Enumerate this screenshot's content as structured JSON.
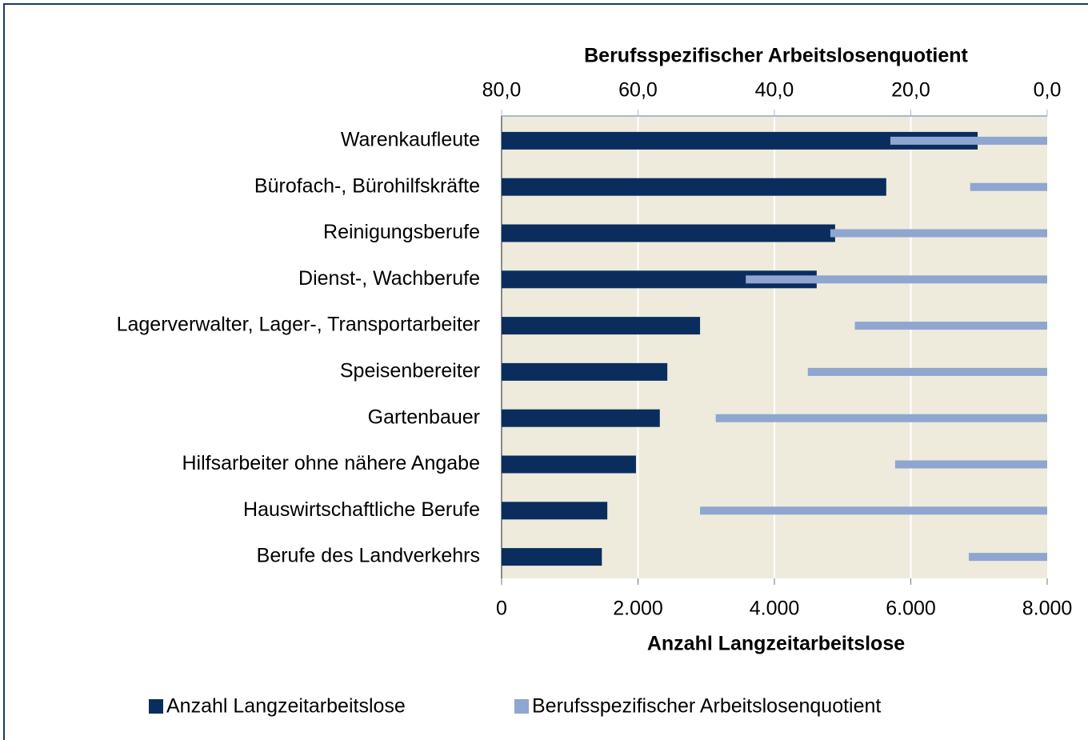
{
  "chart_data": {
    "type": "bar",
    "orientation": "horizontal",
    "categories": [
      "Warenkaufleute",
      "Bürofach-, Bürohilfskräfte",
      "Reinigungsberufe",
      "Dienst-, Wachberufe",
      "Lagerverwalter,  Lager-, Transportarbeiter",
      "Speisenbereiter",
      "Gartenbauer",
      "Hilfsarbeiter ohne nähere  Angabe",
      "Hauswirtschaftliche Berufe",
      "Berufe des Landverkehrs"
    ],
    "series": [
      {
        "name": "Anzahl Langzeitarbeitslose",
        "color": "#0a2d5e",
        "values": [
          6980,
          5640,
          4890,
          4620,
          2910,
          2430,
          2320,
          1970,
          1550,
          1470
        ]
      },
      {
        "name": "Berufsspezifischer Arbeitslosenquotient",
        "color": "#8ea6d0",
        "axis": "x2",
        "values": [
          23.0,
          11.3,
          31.8,
          44.2,
          28.2,
          35.1,
          48.6,
          22.3,
          50.9,
          11.5
        ]
      }
    ],
    "xlabel": "Anzahl Langzeitarbeitslose",
    "x2label": "Berufsspezifischer  Arbeitslosenquotient",
    "xlim": [
      0,
      8000
    ],
    "xticks": [
      0,
      {
        "value": 2000,
        "label": "2.000"
      },
      {
        "value": 4000,
        "label": "4.000"
      },
      {
        "value": 6000,
        "label": "6.000"
      },
      {
        "value": 8000,
        "label": "8.000"
      }
    ],
    "x2lim": [
      80,
      0
    ],
    "x2ticks": [
      {
        "value": 80,
        "label": "80,0"
      },
      {
        "value": 60,
        "label": "60,0"
      },
      {
        "value": 40,
        "label": "40,0"
      },
      {
        "value": 20,
        "label": "20,0"
      },
      {
        "value": 0,
        "label": "0,0"
      }
    ],
    "grid": true,
    "legend": "bottom"
  }
}
